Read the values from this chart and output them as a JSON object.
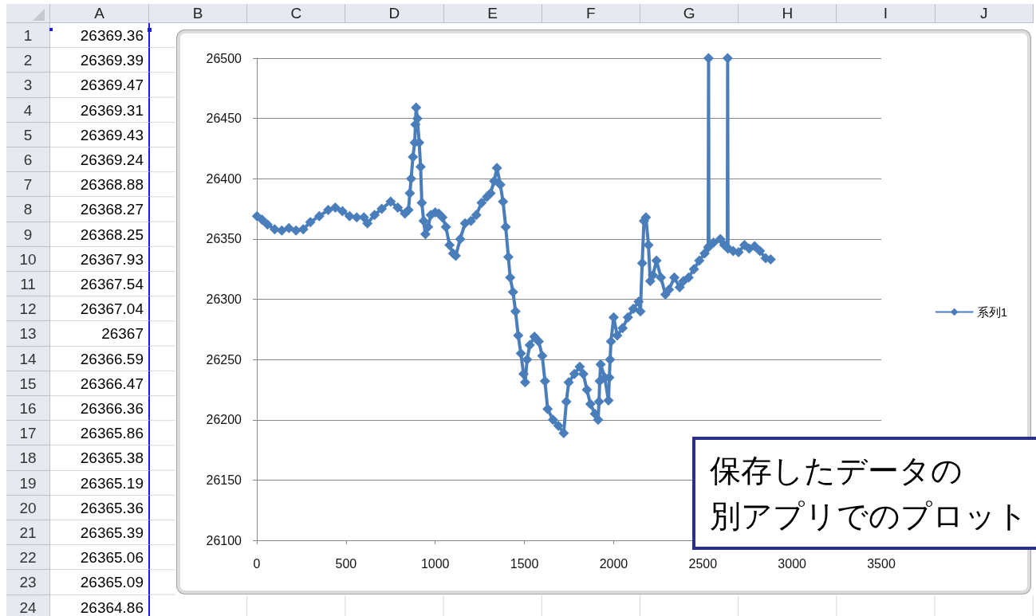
{
  "chart_data": [
    {
      "type": "line",
      "legend": "right",
      "grid": "y",
      "marker": "diamond",
      "line_style": "solid",
      "xlim": [
        0,
        3500
      ],
      "xticks": [
        0,
        500,
        1000,
        1500,
        2000,
        2500,
        3000,
        3500
      ],
      "ylim": [
        26100,
        26500
      ],
      "yticks": [
        26100,
        26150,
        26200,
        26250,
        26300,
        26350,
        26400,
        26450,
        26500
      ],
      "x": [
        1,
        30,
        60,
        100,
        140,
        180,
        220,
        260,
        300,
        350,
        400,
        440,
        480,
        520,
        560,
        600,
        620,
        660,
        700,
        750,
        790,
        830,
        850,
        858,
        865,
        875,
        885,
        889,
        893,
        900,
        910,
        918,
        925,
        935,
        945,
        960,
        975,
        1000,
        1020,
        1040,
        1060,
        1080,
        1100,
        1115,
        1140,
        1167,
        1200,
        1230,
        1260,
        1290,
        1310,
        1330,
        1346,
        1365,
        1380,
        1395,
        1410,
        1420,
        1436,
        1450,
        1465,
        1480,
        1495,
        1504,
        1515,
        1530,
        1556,
        1580,
        1600,
        1615,
        1630,
        1660,
        1690,
        1720,
        1735,
        1748,
        1780,
        1810,
        1830,
        1850,
        1870,
        1895,
        1913,
        1918,
        1922,
        1927,
        1950,
        1971,
        1976,
        1980,
        1985,
        2000,
        2020,
        2050,
        2080,
        2110,
        2140,
        2150,
        2160,
        2170,
        2181,
        2195,
        2205,
        2220,
        2240,
        2265,
        2290,
        2310,
        2340,
        2370,
        2391,
        2420,
        2450,
        2480,
        2510,
        2530,
        2532,
        2534,
        2560,
        2598,
        2620,
        2637,
        2639,
        2641,
        2670,
        2700,
        2733,
        2760,
        2790,
        2820,
        2852,
        2880
      ],
      "series": [
        {
          "name": "系列1",
          "color": "#4a7ebb",
          "values": [
            26369,
            26366,
            26362,
            26358,
            26357,
            26359,
            26357,
            26358,
            26364,
            26369,
            26374,
            26376,
            26373,
            26369,
            26368,
            26368,
            26363,
            26370,
            26375,
            26381,
            26376,
            26371,
            26374,
            26388,
            26400,
            26418,
            26430,
            26445,
            26459,
            26450,
            26430,
            26410,
            26380,
            26365,
            26354,
            26360,
            26370,
            26372,
            26371,
            26368,
            26360,
            26345,
            26338,
            26336,
            26350,
            26363,
            26365,
            26370,
            26380,
            26385,
            26388,
            26398,
            26409,
            26395,
            26381,
            26360,
            26335,
            26318,
            26306,
            26290,
            26270,
            26255,
            26238,
            26231,
            26250,
            26262,
            26269,
            26265,
            26253,
            26232,
            26209,
            26200,
            26195,
            26189,
            26215,
            26231,
            26238,
            26244,
            26238,
            26225,
            26213,
            26205,
            26200,
            26215,
            26232,
            26246,
            26235,
            26216,
            26235,
            26250,
            26265,
            26285,
            26270,
            26276,
            26285,
            26292,
            26298,
            26290,
            26330,
            26365,
            26368,
            26345,
            26315,
            26320,
            26332,
            26318,
            26304,
            26308,
            26318,
            26310,
            26315,
            26318,
            26325,
            26332,
            26338,
            26343,
            26500,
            26344,
            26347,
            26350,
            26345,
            26343,
            26500,
            26342,
            26340,
            26339,
            26345,
            26342,
            26344,
            26340,
            26334,
            26333
          ]
        }
      ],
      "annotations": [
        "保存したデータの",
        "別アプリでのプロット"
      ]
    },
    {
      "type": "heatmap",
      "data_labels": true,
      "categories": [
        "A",
        "B",
        "C",
        "D",
        "E",
        "F",
        "G",
        "H",
        "I",
        "J"
      ],
      "y_categories": [
        "1",
        "2",
        "3",
        "4",
        "5",
        "6",
        "7",
        "8",
        "9",
        "10",
        "11",
        "12",
        "13",
        "14",
        "15",
        "16",
        "17",
        "18",
        "19",
        "20",
        "21",
        "22",
        "23",
        "24"
      ],
      "cells": [
        [
          26369.36,
          null,
          null,
          null,
          null,
          null,
          null,
          null,
          null,
          null
        ],
        [
          26369.39,
          null,
          null,
          null,
          null,
          null,
          null,
          null,
          null,
          null
        ],
        [
          26369.47,
          null,
          null,
          null,
          null,
          null,
          null,
          null,
          null,
          null
        ],
        [
          26369.31,
          null,
          null,
          null,
          null,
          null,
          null,
          null,
          null,
          null
        ],
        [
          26369.43,
          null,
          null,
          null,
          null,
          null,
          null,
          null,
          null,
          null
        ],
        [
          26369.24,
          null,
          null,
          null,
          null,
          null,
          null,
          null,
          null,
          null
        ],
        [
          26368.88,
          null,
          null,
          null,
          null,
          null,
          null,
          null,
          null,
          null
        ],
        [
          26368.27,
          null,
          null,
          null,
          null,
          null,
          null,
          null,
          null,
          null
        ],
        [
          26368.25,
          null,
          null,
          null,
          null,
          null,
          null,
          null,
          null,
          null
        ],
        [
          26367.93,
          null,
          null,
          null,
          null,
          null,
          null,
          null,
          null,
          null
        ],
        [
          26367.54,
          null,
          null,
          null,
          null,
          null,
          null,
          null,
          null,
          null
        ],
        [
          26367.04,
          null,
          null,
          null,
          null,
          null,
          null,
          null,
          null,
          null
        ],
        [
          26367,
          null,
          null,
          null,
          null,
          null,
          null,
          null,
          null,
          null
        ],
        [
          26366.59,
          null,
          null,
          null,
          null,
          null,
          null,
          null,
          null,
          null
        ],
        [
          26366.47,
          null,
          null,
          null,
          null,
          null,
          null,
          null,
          null,
          null
        ],
        [
          26366.36,
          null,
          null,
          null,
          null,
          null,
          null,
          null,
          null,
          null
        ],
        [
          26365.86,
          null,
          null,
          null,
          null,
          null,
          null,
          null,
          null,
          null
        ],
        [
          26365.38,
          null,
          null,
          null,
          null,
          null,
          null,
          null,
          null,
          null
        ],
        [
          26365.19,
          null,
          null,
          null,
          null,
          null,
          null,
          null,
          null,
          null
        ],
        [
          26365.36,
          null,
          null,
          null,
          null,
          null,
          null,
          null,
          null,
          null
        ],
        [
          26365.39,
          null,
          null,
          null,
          null,
          null,
          null,
          null,
          null,
          null
        ],
        [
          26365.06,
          null,
          null,
          null,
          null,
          null,
          null,
          null,
          null,
          null
        ],
        [
          26365.09,
          null,
          null,
          null,
          null,
          null,
          null,
          null,
          null,
          null
        ],
        [
          26364.86,
          null,
          null,
          null,
          null,
          null,
          null,
          null,
          null,
          null
        ]
      ]
    }
  ]
}
